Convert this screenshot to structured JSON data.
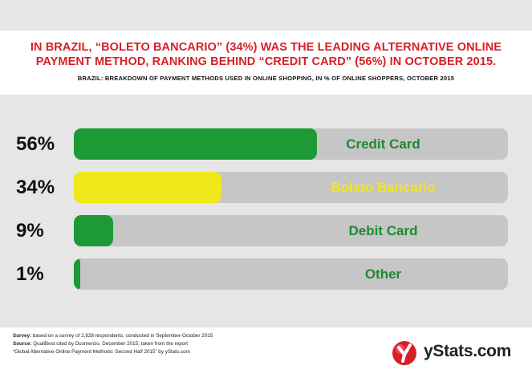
{
  "header": {
    "title_line1": "In Brazil, “Boleto Bancario” (34%) was the leading alternative online",
    "title_line2": "payment method, ranking behind “Credit Card” (56%) in October 2015.",
    "subtitle": "Brazil: Breakdown of Payment Methods Used in Online Shopping, in % of Online Shoppers, October 2015"
  },
  "chart_data": {
    "type": "bar",
    "orientation": "horizontal",
    "categories": [
      "Credit Card",
      "Boleto Bancario",
      "Debit Card",
      "Other"
    ],
    "values": [
      56,
      34,
      9,
      1
    ],
    "value_labels": [
      "56%",
      "34%",
      "9%",
      "1%"
    ],
    "xlim": [
      0,
      100
    ],
    "unit": "%",
    "grid": false,
    "colors": [
      "#1d9a35",
      "#f2e71b",
      "#1d9a35",
      "#1d9a35"
    ],
    "label_colors": [
      "#1d8a30",
      "#f2e71b",
      "#1d8a30",
      "#1d8a30"
    ],
    "track_color": "#c6c6c6"
  },
  "footer": {
    "survey_label": "Survey:",
    "survey_text": " based on a survey of 2,828 respondents, conducted in September-October 2015",
    "source_label": "Source:",
    "source_text": " QualiBest cited by Dcomercio, December 2015; taken from the report",
    "source_text2": "“Global Alternative Online Payment Methods: Second Half 2015” by yStats.com",
    "logo_text": "yStats.com",
    "logo_color": "#d81f26"
  }
}
